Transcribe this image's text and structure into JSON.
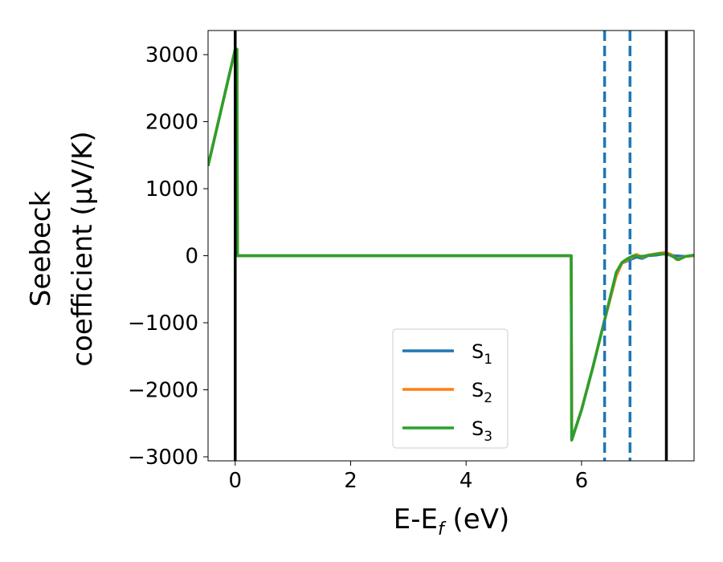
{
  "chart_data": {
    "type": "line",
    "xlabel": "E-E",
    "xlabel_sub": "f",
    "xlabel_unit": " (eV)",
    "ylabel_line1": "Seebeck",
    "ylabel_line2": "coefficient  (μV/K)",
    "xlim": [
      -0.47,
      7.95
    ],
    "ylim": [
      -3060,
      3360
    ],
    "xticks": [
      0,
      2,
      4,
      6
    ],
    "xtick_labels": [
      "0",
      "2",
      "4",
      "6"
    ],
    "yticks": [
      3000,
      2000,
      1000,
      0,
      -1000,
      -2000,
      -3000
    ],
    "ytick_labels": [
      "3000",
      "2000",
      "1000",
      "0",
      "−1000",
      "−2000",
      "−3000"
    ],
    "grid": false,
    "legend_position": "lower-center",
    "vertical_lines": [
      {
        "x": 0.0,
        "style": "solid",
        "color": "#000000"
      },
      {
        "x": 7.47,
        "style": "solid",
        "color": "#000000"
      },
      {
        "x": 6.4,
        "style": "dashed",
        "color": "#1f77b4"
      },
      {
        "x": 6.84,
        "style": "dashed",
        "color": "#1f77b4"
      }
    ],
    "series": [
      {
        "name": "S",
        "sub": "1",
        "color": "#1f77b4",
        "x": [
          -0.47,
          0.0,
          0.03,
          0.04,
          1.0,
          2.0,
          3.0,
          4.0,
          5.0,
          5.82,
          5.83,
          6.0,
          6.2,
          6.4,
          6.6,
          6.7,
          6.84,
          6.95,
          7.05,
          7.15,
          7.3,
          7.45,
          7.6,
          7.8,
          7.95
        ],
        "y": [
          1340,
          3080,
          3080,
          0,
          0,
          0,
          0,
          0,
          0,
          0,
          -2750,
          -2300,
          -1650,
          -960,
          -300,
          -110,
          -60,
          -20,
          -40,
          0,
          10,
          30,
          0,
          -10,
          0
        ]
      },
      {
        "name": "S",
        "sub": "2",
        "color": "#ff7f0e",
        "x": [
          -0.47,
          0.0,
          0.03,
          0.04,
          1.0,
          2.0,
          3.0,
          4.0,
          5.0,
          5.82,
          5.83,
          6.0,
          6.2,
          6.4,
          6.6,
          6.7,
          6.84,
          6.95,
          7.05,
          7.15,
          7.3,
          7.45,
          7.55,
          7.65,
          7.8,
          7.95
        ],
        "y": [
          1340,
          3080,
          3080,
          0,
          0,
          0,
          0,
          0,
          0,
          0,
          -2750,
          -2300,
          -1650,
          -960,
          -300,
          -110,
          -40,
          20,
          -20,
          10,
          30,
          50,
          20,
          -60,
          -10,
          0
        ]
      },
      {
        "name": "S",
        "sub": "3",
        "color": "#2ca02c",
        "x": [
          -0.47,
          0.0,
          0.03,
          0.04,
          1.0,
          2.0,
          3.0,
          4.0,
          5.0,
          5.82,
          5.83,
          6.0,
          6.2,
          6.4,
          6.6,
          6.7,
          6.8,
          6.9,
          7.0,
          7.1,
          7.2,
          7.35,
          7.5,
          7.6,
          7.68,
          7.8,
          7.95
        ],
        "y": [
          1340,
          3080,
          3080,
          0,
          0,
          0,
          0,
          0,
          0,
          0,
          -2750,
          -2300,
          -1650,
          -960,
          -250,
          -100,
          -40,
          0,
          -10,
          -5,
          10,
          30,
          20,
          -20,
          -60,
          -10,
          10
        ]
      }
    ]
  }
}
